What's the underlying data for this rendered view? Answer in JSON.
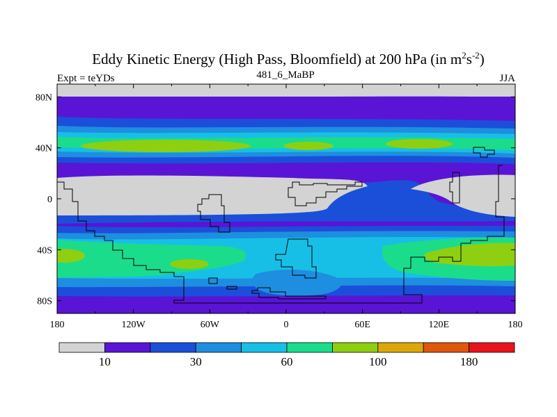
{
  "chart_data": {
    "type": "heatmap",
    "title": "Eddy Kinetic Energy (High Pass, Bloomfield) at 200 hPa (in m",
    "title_sup1": "2",
    "title_mid": "s",
    "title_sup2": "-2",
    "title_end": ")",
    "subtitle": "481_6_MaBP",
    "left_label": "Expt = teYDs",
    "right_label": "JJA",
    "x_ticks": [
      {
        "value": -180,
        "label": "180"
      },
      {
        "value": -120,
        "label": "120W"
      },
      {
        "value": -60,
        "label": "60W"
      },
      {
        "value": 0,
        "label": "0"
      },
      {
        "value": 60,
        "label": "60E"
      },
      {
        "value": 120,
        "label": "120E"
      },
      {
        "value": 180,
        "label": "180"
      }
    ],
    "y_ticks": [
      {
        "value": 80,
        "label": "80N"
      },
      {
        "value": 40,
        "label": "40N"
      },
      {
        "value": 0,
        "label": "0"
      },
      {
        "value": -40,
        "label": "40S"
      },
      {
        "value": -80,
        "label": "80S"
      }
    ],
    "xlim": [
      -180,
      180
    ],
    "ylim": [
      -90,
      90
    ],
    "colorbar": {
      "colors": [
        "#d3d3d3",
        "#5a14d6",
        "#1b4fd9",
        "#1e8ee0",
        "#17bfe6",
        "#1bdc8b",
        "#8ecf12",
        "#dba606",
        "#e0560d",
        "#e8141b"
      ],
      "labels": [
        {
          "boundary": 1,
          "label": "10"
        },
        {
          "boundary": 3,
          "label": "30"
        },
        {
          "boundary": 5,
          "label": "60"
        },
        {
          "boundary": 7,
          "label": "100"
        },
        {
          "boundary": 9,
          "label": "180"
        }
      ]
    }
  }
}
